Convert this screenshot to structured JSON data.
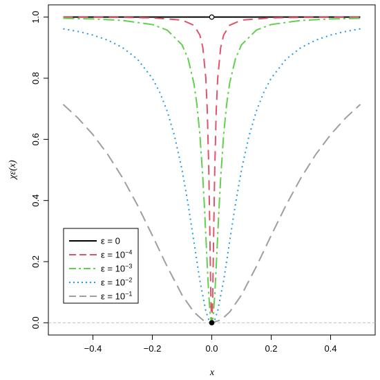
{
  "chart_data": {
    "type": "line",
    "xlabel": "x",
    "ylabel": "χε(x)",
    "xlim": [
      -0.55,
      0.55
    ],
    "ylim": [
      -0.04,
      1.04
    ],
    "x_ticks": [
      -0.4,
      -0.2,
      0.0,
      0.2,
      0.4
    ],
    "x_tick_labels": [
      "−0.4",
      "−0.2",
      "0.0",
      "0.2",
      "0.4"
    ],
    "y_ticks": [
      0.0,
      0.2,
      0.4,
      0.6,
      0.8,
      1.0
    ],
    "y_tick_labels": [
      "0.0",
      "0.2",
      "0.4",
      "0.6",
      "0.8",
      "1.0"
    ],
    "grid": false,
    "legend_position": "bottom-left",
    "reference_line": {
      "y": 0,
      "color": "#bebebe",
      "style": "dashed"
    },
    "series": [
      {
        "name": "ε = 0",
        "eps_base": "ε = 0",
        "eps_exp": "",
        "color": "#000000",
        "dash": "",
        "x": [
          -0.5,
          -0.25,
          -0.1,
          -0.02,
          0.0,
          0.02,
          0.1,
          0.25,
          0.5
        ],
        "values": [
          1,
          1,
          1,
          1,
          1,
          1,
          1,
          1,
          1
        ]
      },
      {
        "name": "ε = 10−4",
        "eps_base": "ε = 10",
        "eps_exp": "−4",
        "color": "#DF536B",
        "dash": "14,8",
        "x": [
          -0.5,
          -0.3,
          -0.2,
          -0.1,
          -0.06,
          -0.04,
          -0.03,
          -0.02,
          -0.015,
          -0.01,
          -0.007,
          -0.005,
          -0.003,
          -0.001,
          0.0,
          0.001,
          0.003,
          0.005,
          0.007,
          0.01,
          0.015,
          0.02,
          0.03,
          0.04,
          0.06,
          0.1,
          0.2,
          0.3,
          0.5
        ],
        "values": [
          0.9996,
          0.9989,
          0.9975,
          0.9901,
          0.973,
          0.9412,
          0.9,
          0.8,
          0.6923,
          0.5,
          0.3289,
          0.2,
          0.0826,
          0.0099,
          0.0,
          0.0099,
          0.0826,
          0.2,
          0.3289,
          0.5,
          0.6923,
          0.8,
          0.9,
          0.9412,
          0.973,
          0.9901,
          0.9975,
          0.9989,
          0.9996
        ]
      },
      {
        "name": "ε = 10−3",
        "eps_base": "ε = 10",
        "eps_exp": "−3",
        "color": "#61D04F",
        "dash": "16,5,3,5",
        "x": [
          -0.5,
          -0.4,
          -0.3,
          -0.2,
          -0.15,
          -0.1,
          -0.08,
          -0.06,
          -0.05,
          -0.04,
          -0.03,
          -0.025,
          -0.02,
          -0.015,
          -0.01,
          -0.005,
          -0.002,
          0.0,
          0.002,
          0.005,
          0.01,
          0.015,
          0.02,
          0.025,
          0.03,
          0.04,
          0.05,
          0.06,
          0.08,
          0.1,
          0.15,
          0.2,
          0.3,
          0.4,
          0.5
        ],
        "values": [
          0.996,
          0.9938,
          0.989,
          0.9756,
          0.9574,
          0.9091,
          0.8649,
          0.7826,
          0.7143,
          0.6154,
          0.4737,
          0.3846,
          0.2857,
          0.1837,
          0.0909,
          0.0244,
          0.004,
          0.0,
          0.004,
          0.0244,
          0.0909,
          0.1837,
          0.2857,
          0.3846,
          0.4737,
          0.6154,
          0.7143,
          0.7826,
          0.8649,
          0.9091,
          0.9574,
          0.9756,
          0.989,
          0.9938,
          0.996
        ]
      },
      {
        "name": "ε = 10−2",
        "eps_base": "ε = 10",
        "eps_exp": "−2",
        "color": "#2297E6",
        "dash": "2,5",
        "x": [
          -0.5,
          -0.45,
          -0.4,
          -0.35,
          -0.3,
          -0.25,
          -0.2,
          -0.175,
          -0.15,
          -0.125,
          -0.1,
          -0.08,
          -0.06,
          -0.04,
          -0.02,
          -0.01,
          0.0,
          0.01,
          0.02,
          0.04,
          0.06,
          0.08,
          0.1,
          0.125,
          0.15,
          0.175,
          0.2,
          0.25,
          0.3,
          0.35,
          0.4,
          0.45,
          0.5
        ],
        "values": [
          0.9615,
          0.9529,
          0.9412,
          0.9245,
          0.9,
          0.8621,
          0.8,
          0.7538,
          0.6923,
          0.6098,
          0.5,
          0.3902,
          0.2647,
          0.1379,
          0.0385,
          0.0099,
          0.0,
          0.0099,
          0.0385,
          0.1379,
          0.2647,
          0.3902,
          0.5,
          0.6098,
          0.6923,
          0.7538,
          0.8,
          0.8621,
          0.9,
          0.9245,
          0.9412,
          0.9529,
          0.9615
        ]
      },
      {
        "name": "ε = 10−1",
        "eps_base": "ε = 10",
        "eps_exp": "−1",
        "color": "#9E9E9E",
        "dash": "16,8",
        "x": [
          -0.5,
          -0.45,
          -0.4,
          -0.35,
          -0.3,
          -0.25,
          -0.2,
          -0.15,
          -0.1,
          -0.06,
          -0.03,
          0.0,
          0.03,
          0.06,
          0.1,
          0.15,
          0.2,
          0.25,
          0.3,
          0.35,
          0.4,
          0.45,
          0.5
        ],
        "values": [
          0.7143,
          0.6694,
          0.6154,
          0.5506,
          0.4737,
          0.3846,
          0.2857,
          0.1837,
          0.0909,
          0.0347,
          0.0089,
          0.0,
          0.0089,
          0.0347,
          0.0909,
          0.1837,
          0.2857,
          0.3846,
          0.4737,
          0.5506,
          0.6154,
          0.6694,
          0.7143
        ]
      }
    ],
    "markers": [
      {
        "x": 0,
        "y": 1,
        "fill": "#ffffff",
        "stroke": "#000000"
      },
      {
        "x": 0,
        "y": 0,
        "fill": "#000000",
        "stroke": "#000000"
      }
    ]
  }
}
